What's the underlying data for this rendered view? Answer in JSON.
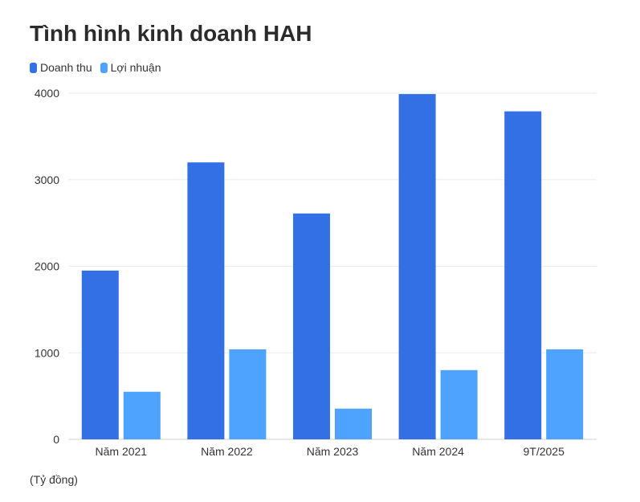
{
  "chart_data": {
    "type": "bar",
    "title": "Tình hình kinh doanh HAH",
    "categories": [
      "Năm 2021",
      "Năm 2022",
      "Năm 2023",
      "Năm 2024",
      "9T/2025"
    ],
    "series": [
      {
        "name": "Doanh thu",
        "color": "#3370e6",
        "values": [
          1950,
          3200,
          2610,
          3990,
          3790
        ]
      },
      {
        "name": "Lợi nhuận",
        "color": "#4da3ff",
        "values": [
          550,
          1040,
          355,
          800,
          1040
        ]
      }
    ],
    "ylim": [
      0,
      4000
    ],
    "yticks": [
      "0",
      "1000",
      "2000",
      "3000",
      "4000"
    ],
    "grid": true,
    "legend_position": "top-left",
    "unit_note": "(Tỷ đồng)"
  }
}
